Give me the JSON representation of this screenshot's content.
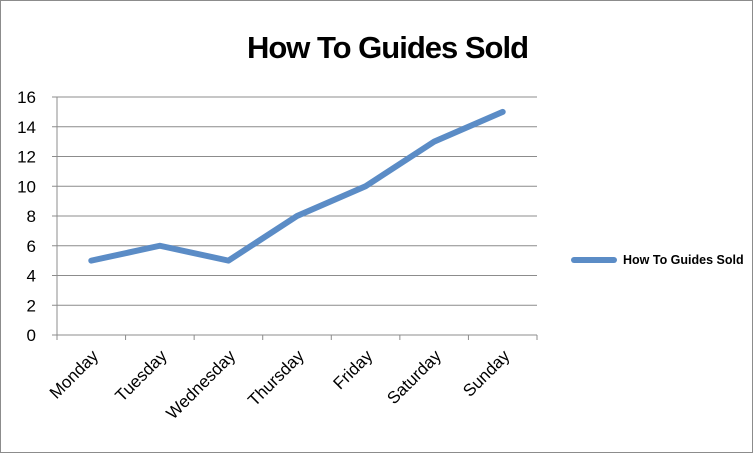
{
  "chart_data": {
    "type": "line",
    "title": "How To Guides Sold",
    "categories": [
      "Monday",
      "Tuesday",
      "Wednesday",
      "Thursday",
      "Friday",
      "Saturday",
      "Sunday"
    ],
    "series": [
      {
        "name": "How To Guides Sold",
        "values": [
          5,
          6,
          5,
          8,
          10,
          13,
          15
        ],
        "color": "#5b8cc6"
      }
    ],
    "ylim": [
      0,
      16
    ],
    "yticks": [
      0,
      2,
      4,
      6,
      8,
      10,
      12,
      14,
      16
    ],
    "grid": true,
    "legend": "right",
    "xlabel": "",
    "ylabel": ""
  }
}
